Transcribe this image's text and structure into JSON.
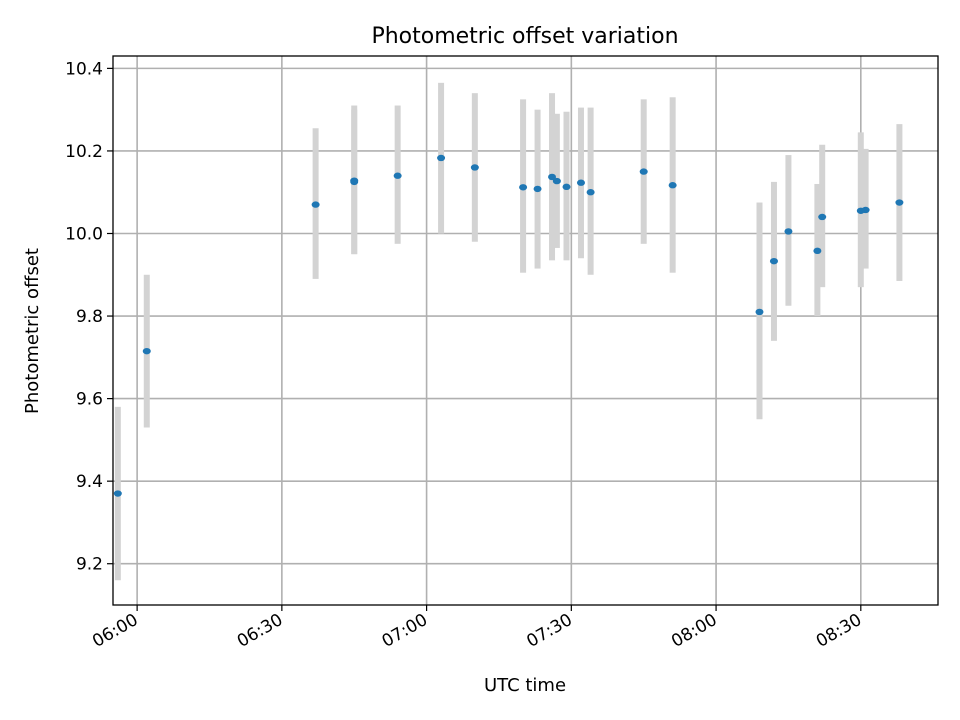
{
  "chart_data": {
    "type": "scatter",
    "title": "Photometric offset variation",
    "xlabel": "UTC time",
    "ylabel": "Photometric offset",
    "grid": true,
    "xlim": [
      "05:55",
      "08:46"
    ],
    "ylim": [
      9.1,
      10.43
    ],
    "x_ticks": [
      "06:00",
      "06:30",
      "07:00",
      "07:30",
      "08:00",
      "08:30"
    ],
    "y_ticks": [
      "9.2",
      "9.4",
      "9.6",
      "9.8",
      "10.0",
      "10.2",
      "10.4"
    ],
    "colors": {
      "points": "#1f77b4",
      "error_bars": "#d3d3d3"
    },
    "points": [
      {
        "x": "05:56",
        "y": 9.37,
        "y_low": 9.16,
        "y_high": 9.58
      },
      {
        "x": "06:02",
        "y": 9.715,
        "y_low": 9.53,
        "y_high": 9.9
      },
      {
        "x": "06:37",
        "y": 10.07,
        "y_low": 9.89,
        "y_high": 10.255
      },
      {
        "x": "06:45",
        "y": 10.125,
        "y_low": 9.95,
        "y_high": 10.3
      },
      {
        "x": "06:45",
        "y": 10.128,
        "y_low": 9.95,
        "y_high": 10.31
      },
      {
        "x": "06:54",
        "y": 10.14,
        "y_low": 9.975,
        "y_high": 10.31
      },
      {
        "x": "07:03",
        "y": 10.183,
        "y_low": 10.0,
        "y_high": 10.365
      },
      {
        "x": "07:10",
        "y": 10.16,
        "y_low": 9.98,
        "y_high": 10.34
      },
      {
        "x": "07:20",
        "y": 10.112,
        "y_low": 9.905,
        "y_high": 10.325
      },
      {
        "x": "07:23",
        "y": 10.108,
        "y_low": 9.915,
        "y_high": 10.3
      },
      {
        "x": "07:26",
        "y": 10.137,
        "y_low": 9.935,
        "y_high": 10.34
      },
      {
        "x": "07:27",
        "y": 10.127,
        "y_low": 9.965,
        "y_high": 10.29
      },
      {
        "x": "07:29",
        "y": 10.113,
        "y_low": 9.935,
        "y_high": 10.295
      },
      {
        "x": "07:32",
        "y": 10.123,
        "y_low": 9.94,
        "y_high": 10.305
      },
      {
        "x": "07:34",
        "y": 10.1,
        "y_low": 9.9,
        "y_high": 10.305
      },
      {
        "x": "07:45",
        "y": 10.15,
        "y_low": 9.975,
        "y_high": 10.325
      },
      {
        "x": "07:51",
        "y": 10.117,
        "y_low": 9.905,
        "y_high": 10.33
      },
      {
        "x": "08:09",
        "y": 9.81,
        "y_low": 9.55,
        "y_high": 10.075
      },
      {
        "x": "08:12",
        "y": 9.933,
        "y_low": 9.74,
        "y_high": 10.125
      },
      {
        "x": "08:15",
        "y": 10.005,
        "y_low": 9.825,
        "y_high": 10.19
      },
      {
        "x": "08:21",
        "y": 9.958,
        "y_low": 9.8,
        "y_high": 10.12
      },
      {
        "x": "08:22",
        "y": 10.04,
        "y_low": 9.87,
        "y_high": 10.215
      },
      {
        "x": "08:30",
        "y": 10.055,
        "y_low": 9.87,
        "y_high": 10.245
      },
      {
        "x": "08:31",
        "y": 10.057,
        "y_low": 9.915,
        "y_high": 10.205
      },
      {
        "x": "08:38",
        "y": 10.075,
        "y_low": 9.885,
        "y_high": 10.265
      }
    ]
  }
}
